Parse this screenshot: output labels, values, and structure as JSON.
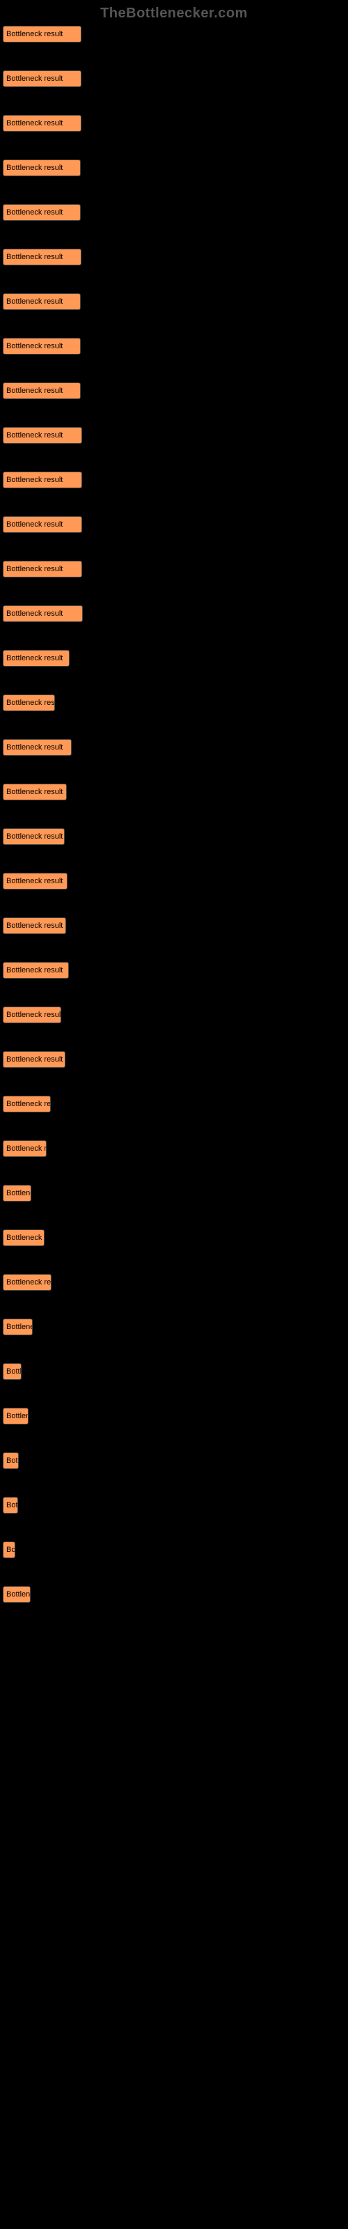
{
  "watermark": "TheBottlenecker.com",
  "bar_label": "Bottleneck result",
  "bar_color": "#ff9955",
  "background_color": "#000000",
  "label_text_color": "#000000",
  "link_color": "#0066cc",
  "bars": [
    {
      "link": "",
      "width": 113
    },
    {
      "link": "",
      "width": 113
    },
    {
      "link": "",
      "width": 113
    },
    {
      "link": "",
      "width": 112
    },
    {
      "link": "",
      "width": 112
    },
    {
      "link": "",
      "width": 113
    },
    {
      "link": "",
      "width": 112
    },
    {
      "link": "",
      "width": 112
    },
    {
      "link": "",
      "width": 112
    },
    {
      "link": "",
      "width": 114
    },
    {
      "link": "",
      "width": 114
    },
    {
      "link": "",
      "width": 114
    },
    {
      "link": "",
      "width": 114
    },
    {
      "link": "",
      "width": 115
    },
    {
      "link": "",
      "width": 96
    },
    {
      "link": "",
      "width": 75
    },
    {
      "link": "",
      "width": 99
    },
    {
      "link": "",
      "width": 92
    },
    {
      "link": "",
      "width": 89
    },
    {
      "link": "",
      "width": 93
    },
    {
      "link": "",
      "width": 91
    },
    {
      "link": "",
      "width": 95
    },
    {
      "link": "",
      "width": 84
    },
    {
      "link": "",
      "width": 90
    },
    {
      "link": "",
      "width": 69
    },
    {
      "link": "",
      "width": 63
    },
    {
      "link": "",
      "width": 41
    },
    {
      "link": "",
      "width": 60
    },
    {
      "link": "",
      "width": 70
    },
    {
      "link": "",
      "width": 43
    },
    {
      "link": "",
      "width": 27
    },
    {
      "link": "",
      "width": 37
    },
    {
      "link": "",
      "width": 23
    },
    {
      "link": "",
      "width": 22
    },
    {
      "link": "",
      "width": 18
    },
    {
      "link": "",
      "width": 40
    }
  ]
}
